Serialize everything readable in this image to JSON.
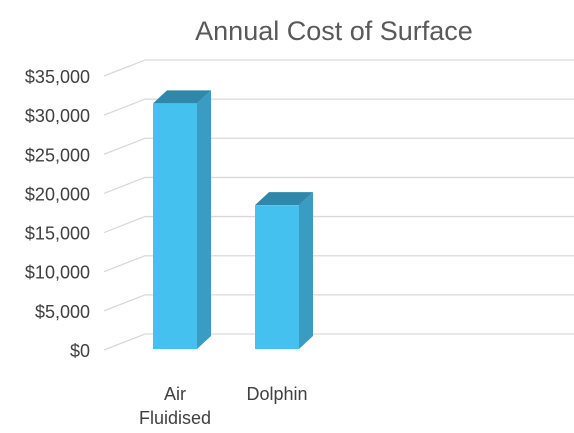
{
  "chart_data": {
    "type": "bar",
    "title": "Annual Cost of Surface",
    "categories": [
      "Air Fluidised",
      "Dolphin"
    ],
    "category_lines": [
      [
        "Air",
        "Fluidised"
      ],
      [
        "Dolphin"
      ]
    ],
    "values": [
      31500,
      18500
    ],
    "y_ticks": [
      "$0",
      "$5,000",
      "$10,000",
      "$15,000",
      "$20,000",
      "$25,000",
      "$30,000",
      "$35,000"
    ],
    "ylim": [
      0,
      35000
    ],
    "ystep": 5000,
    "grid": true,
    "legend": "none",
    "bar_style": "3d-column",
    "colors": {
      "bar_front": "#45C1F0",
      "bar_side": "#3A9CC3",
      "bar_top": "#2F87A9",
      "grid": "#D9D9D9",
      "text": "#404040",
      "title": "#595959"
    }
  }
}
